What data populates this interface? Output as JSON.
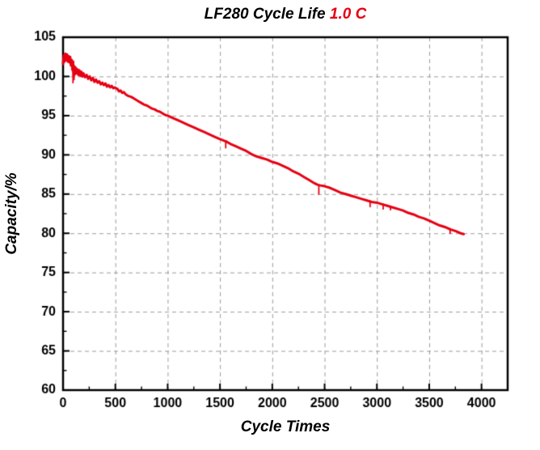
{
  "title": {
    "main": "LF280 Cycle Life",
    "highlight": "1.0 C"
  },
  "colors": {
    "line": "#e60012",
    "grid": "#9b9b9b",
    "axis": "#000000",
    "tick_label": "#000000",
    "title_highlight": "#e60012"
  },
  "chart_data": {
    "type": "line",
    "title": "LF280 Cycle Life 1.0 C",
    "xlabel": "Cycle Times",
    "ylabel": "Capacity/%",
    "xlim": [
      0,
      4250
    ],
    "ylim": [
      60,
      105
    ],
    "x_ticks": [
      0,
      500,
      1000,
      1500,
      2000,
      2500,
      3000,
      3500,
      4000
    ],
    "y_ticks": [
      60,
      65,
      70,
      75,
      80,
      85,
      90,
      95,
      100,
      105
    ],
    "x_minor_step": 250,
    "y_minor_step": 2.5,
    "grid": true,
    "legend": "none",
    "series": [
      {
        "name": "capacity",
        "color": "#e60012",
        "points": [
          [
            0,
            101.6
          ],
          [
            8,
            102.7
          ],
          [
            15,
            101.9
          ],
          [
            22,
            102.9
          ],
          [
            30,
            102.1
          ],
          [
            38,
            102.8
          ],
          [
            45,
            101.9
          ],
          [
            52,
            102.6
          ],
          [
            60,
            101.8
          ],
          [
            68,
            102.5
          ],
          [
            75,
            101.4
          ],
          [
            82,
            102.1
          ],
          [
            90,
            100.8
          ],
          [
            96,
            101.9
          ],
          [
            102,
            100.0
          ],
          [
            108,
            101.3
          ],
          [
            115,
            100.3
          ],
          [
            122,
            101.1
          ],
          [
            130,
            100.4
          ],
          [
            138,
            100.9
          ],
          [
            146,
            100.2
          ],
          [
            155,
            100.8
          ],
          [
            165,
            100.1
          ],
          [
            175,
            100.6
          ],
          [
            185,
            100.0
          ],
          [
            195,
            100.4
          ],
          [
            210,
            99.9
          ],
          [
            225,
            100.2
          ],
          [
            240,
            99.7
          ],
          [
            255,
            100.0
          ],
          [
            270,
            99.5
          ],
          [
            285,
            99.8
          ],
          [
            300,
            99.3
          ],
          [
            315,
            99.6
          ],
          [
            330,
            99.2
          ],
          [
            345,
            99.4
          ],
          [
            360,
            99.0
          ],
          [
            375,
            99.2
          ],
          [
            390,
            98.9
          ],
          [
            405,
            99.1
          ],
          [
            420,
            98.7
          ],
          [
            435,
            98.9
          ],
          [
            450,
            98.6
          ],
          [
            465,
            98.8
          ],
          [
            480,
            98.5
          ],
          [
            495,
            98.6
          ],
          [
            505,
            98.5
          ],
          [
            520,
            98.4
          ],
          [
            535,
            98.1
          ],
          [
            550,
            98.2
          ],
          [
            565,
            97.9
          ],
          [
            580,
            98.0
          ],
          [
            600,
            97.7
          ],
          [
            625,
            97.5
          ],
          [
            650,
            97.4
          ],
          [
            675,
            97.2
          ],
          [
            700,
            97.0
          ],
          [
            725,
            96.8
          ],
          [
            750,
            96.6
          ],
          [
            775,
            96.4
          ],
          [
            800,
            96.3
          ],
          [
            825,
            96.1
          ],
          [
            850,
            95.9
          ],
          [
            875,
            95.8
          ],
          [
            900,
            95.6
          ],
          [
            925,
            95.5
          ],
          [
            950,
            95.3
          ],
          [
            975,
            95.1
          ],
          [
            1000,
            95.0
          ],
          [
            1050,
            94.7
          ],
          [
            1100,
            94.4
          ],
          [
            1150,
            94.1
          ],
          [
            1200,
            93.8
          ],
          [
            1250,
            93.5
          ],
          [
            1300,
            93.2
          ],
          [
            1350,
            92.9
          ],
          [
            1400,
            92.6
          ],
          [
            1450,
            92.3
          ],
          [
            1500,
            92.0
          ],
          [
            1540,
            91.8
          ],
          [
            1560,
            91.7
          ],
          [
            1600,
            91.4
          ],
          [
            1650,
            91.1
          ],
          [
            1700,
            90.8
          ],
          [
            1750,
            90.5
          ],
          [
            1800,
            90.1
          ],
          [
            1850,
            89.8
          ],
          [
            1900,
            89.6
          ],
          [
            1950,
            89.4
          ],
          [
            2000,
            89.1
          ],
          [
            2050,
            88.9
          ],
          [
            2100,
            88.6
          ],
          [
            2150,
            88.3
          ],
          [
            2200,
            87.9
          ],
          [
            2250,
            87.6
          ],
          [
            2300,
            87.2
          ],
          [
            2350,
            86.8
          ],
          [
            2400,
            86.4
          ],
          [
            2430,
            86.2
          ],
          [
            2460,
            86.1
          ],
          [
            2500,
            86.0
          ],
          [
            2550,
            85.8
          ],
          [
            2600,
            85.5
          ],
          [
            2650,
            85.2
          ],
          [
            2700,
            85.0
          ],
          [
            2750,
            84.8
          ],
          [
            2800,
            84.6
          ],
          [
            2850,
            84.4
          ],
          [
            2900,
            84.2
          ],
          [
            2950,
            84.0
          ],
          [
            3000,
            83.9
          ],
          [
            3050,
            83.7
          ],
          [
            3100,
            83.5
          ],
          [
            3150,
            83.3
          ],
          [
            3200,
            83.1
          ],
          [
            3250,
            82.9
          ],
          [
            3300,
            82.6
          ],
          [
            3350,
            82.4
          ],
          [
            3400,
            82.1
          ],
          [
            3450,
            81.9
          ],
          [
            3500,
            81.6
          ],
          [
            3550,
            81.3
          ],
          [
            3600,
            81.0
          ],
          [
            3650,
            80.8
          ],
          [
            3700,
            80.5
          ],
          [
            3750,
            80.3
          ],
          [
            3800,
            80.0
          ],
          [
            3830,
            79.9
          ]
        ],
        "spikes": [
          [
            95,
            101.2,
            99.2
          ],
          [
            105,
            100.6,
            99.6
          ],
          [
            1555,
            91.8,
            90.9
          ],
          [
            2445,
            86.1,
            85.0
          ],
          [
            2935,
            84.1,
            83.4
          ],
          [
            3060,
            83.7,
            83.1
          ],
          [
            3130,
            83.4,
            83.0
          ],
          [
            3700,
            80.6,
            80.0
          ]
        ]
      }
    ]
  }
}
